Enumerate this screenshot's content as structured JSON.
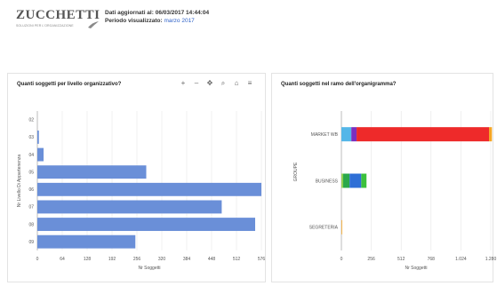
{
  "header": {
    "logo_text": "ZUCCHETTI",
    "logo_subtext": "SOLUZIONI PER L'ORGANIZZAZIONE",
    "updated_label": "Dati aggiornati al:",
    "updated_value": "06/03/2017 14:44:04",
    "period_label": "Periodo visualizzato:",
    "period_value": "marzo 2017"
  },
  "left_panel": {
    "title": "Quanti soggetti per livello organizzativo?",
    "toolbar": [
      {
        "icon": "plus-icon",
        "glyph": "+"
      },
      {
        "icon": "minus-icon",
        "glyph": "–"
      },
      {
        "icon": "pan-icon",
        "glyph": "✥"
      },
      {
        "icon": "zoom-icon",
        "glyph": "⌕"
      },
      {
        "icon": "home-icon",
        "glyph": "⌂"
      },
      {
        "icon": "menu-icon",
        "glyph": "≡"
      }
    ]
  },
  "right_panel": {
    "title": "Quanti soggetti nel ramo dell'organigramma?"
  },
  "chart_data": [
    {
      "type": "bar",
      "orientation": "horizontal",
      "categories": [
        "02",
        "03",
        "04",
        "05",
        "06",
        "07",
        "08",
        "09"
      ],
      "values": [
        0,
        4,
        16,
        280,
        576,
        474,
        560,
        252
      ],
      "xlabel": "Nr Soggetti",
      "ylabel": "Nr Livello Di Appartenenza",
      "xticks": [
        "0",
        "64",
        "128",
        "192",
        "256",
        "320",
        "384",
        "448",
        "512",
        "576"
      ],
      "xlim": [
        0,
        576
      ],
      "grid": true,
      "color": "#6a8fd8"
    },
    {
      "type": "bar",
      "orientation": "horizontal",
      "stacked": true,
      "categories": [
        "MARKET WB",
        "BUSINESS",
        "SEGRETERIA"
      ],
      "ylabel": "GROUPE",
      "xlabel": "Nr Soggetti",
      "xticks": [
        "0",
        "256",
        "512",
        "768",
        "1.024",
        "1.280"
      ],
      "xlim": [
        0,
        1280
      ],
      "grid": true,
      "series": [
        {
          "color": "#54b6e8",
          "values": [
            85,
            0,
            0
          ]
        },
        {
          "color": "#7b2fbf",
          "values": [
            45,
            0,
            0
          ]
        },
        {
          "color": "#ee2a2a",
          "values": [
            1135,
            0,
            0
          ]
        },
        {
          "color": "#f5a623",
          "values": [
            25,
            0,
            6
          ]
        },
        {
          "color": "#8fd14f",
          "values": [
            0,
            15,
            0
          ]
        },
        {
          "color": "#2aa84a",
          "values": [
            0,
            55,
            0
          ]
        },
        {
          "color": "#2e6fd6",
          "values": [
            0,
            100,
            0
          ]
        },
        {
          "color": "#3cc13c",
          "values": [
            0,
            45,
            0
          ]
        }
      ]
    }
  ]
}
